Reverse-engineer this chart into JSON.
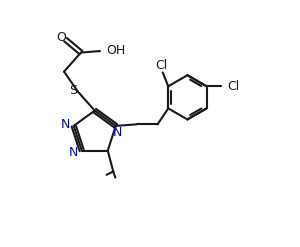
{
  "bg_color": "#ffffff",
  "line_color": "#1a1a1a",
  "n_color": "#0000cc",
  "bond_lw": 1.5,
  "figsize": [
    3.0,
    2.47
  ],
  "dpi": 100,
  "xlim": [
    -0.5,
    8.5
  ],
  "ylim": [
    -0.5,
    7.5
  ]
}
